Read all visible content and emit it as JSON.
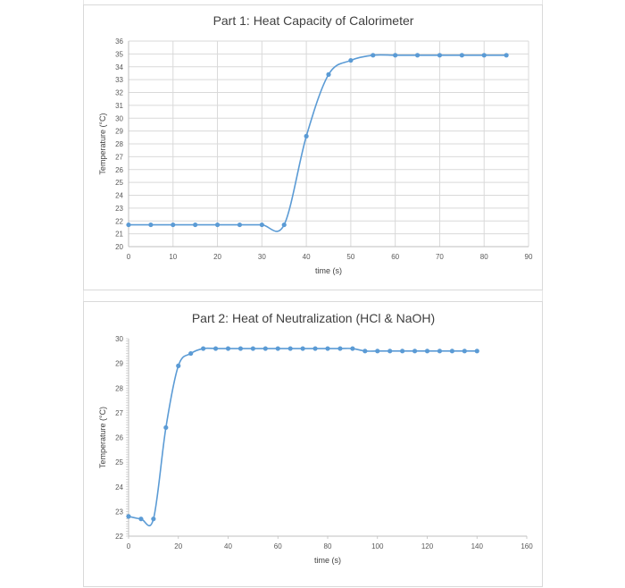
{
  "chart_data": [
    {
      "type": "scatter",
      "title": "Part 1: Heat Capacity of Calorimeter",
      "xlabel": "time (s)",
      "ylabel": "Temperature (°C)",
      "xlim": [
        0,
        90
      ],
      "ylim": [
        20,
        36
      ],
      "x_ticks": [
        0,
        10,
        20,
        30,
        40,
        50,
        60,
        70,
        80,
        90
      ],
      "y_ticks": [
        20,
        21,
        22,
        23,
        24,
        25,
        26,
        27,
        28,
        29,
        30,
        31,
        32,
        33,
        34,
        35,
        36
      ],
      "grid": true,
      "smooth": true,
      "color": "#5b9bd5",
      "series": [
        {
          "x": [
            0,
            5,
            10,
            15,
            20,
            25,
            30,
            35,
            40,
            45,
            50,
            55,
            60,
            65,
            70,
            75,
            80,
            85
          ],
          "y": [
            21.7,
            21.7,
            21.7,
            21.7,
            21.7,
            21.7,
            21.7,
            21.7,
            28.6,
            33.4,
            34.5,
            34.9,
            34.9,
            34.9,
            34.9,
            34.9,
            34.9,
            34.9
          ]
        }
      ]
    },
    {
      "type": "scatter",
      "title": "Part 2: Heat of Neutralization (HCl & NaOH)",
      "xlabel": "time (s)",
      "ylabel": "Temperature (°C)",
      "xlim": [
        0,
        160
      ],
      "ylim": [
        22,
        30
      ],
      "x_ticks": [
        0,
        20,
        40,
        60,
        80,
        100,
        120,
        140,
        160
      ],
      "y_ticks": [
        22,
        23,
        24,
        25,
        26,
        27,
        28,
        29,
        30
      ],
      "grid": false,
      "smooth": true,
      "color": "#5b9bd5",
      "series": [
        {
          "x": [
            0,
            5,
            10,
            15,
            20,
            25,
            30,
            35,
            40,
            45,
            50,
            55,
            60,
            65,
            70,
            75,
            80,
            85,
            90,
            95,
            100,
            105,
            110,
            115,
            120,
            125,
            130,
            135,
            140
          ],
          "y": [
            22.8,
            22.7,
            22.7,
            26.4,
            28.9,
            29.4,
            29.6,
            29.6,
            29.6,
            29.6,
            29.6,
            29.6,
            29.6,
            29.6,
            29.6,
            29.6,
            29.6,
            29.6,
            29.6,
            29.5,
            29.5,
            29.5,
            29.5,
            29.5,
            29.5,
            29.5,
            29.5,
            29.5,
            29.5
          ]
        }
      ]
    }
  ]
}
